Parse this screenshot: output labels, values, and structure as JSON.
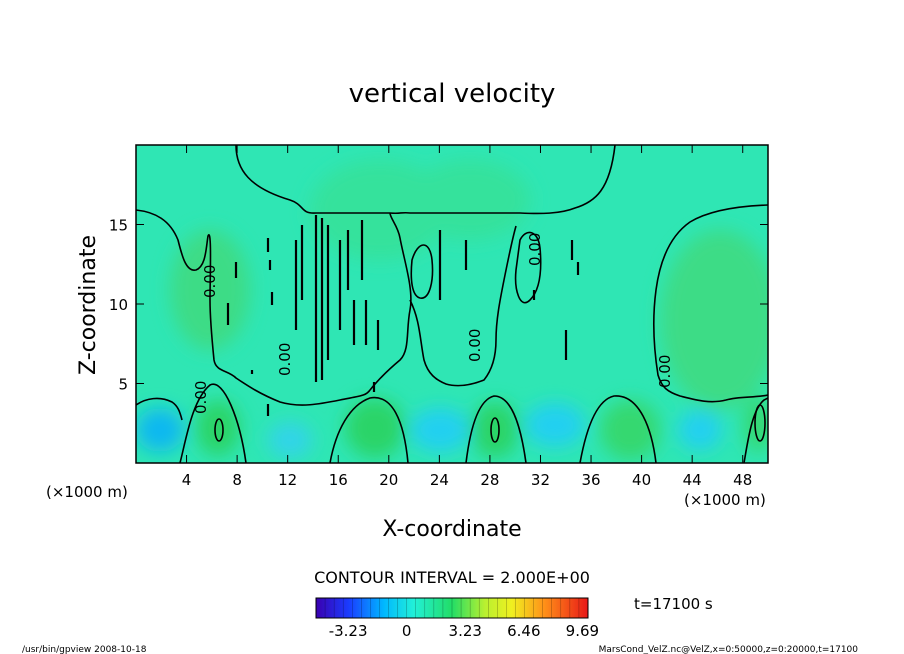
{
  "chart_data": {
    "type": "heatmap",
    "title": "vertical velocity",
    "xlabel": "X-coordinate",
    "ylabel": "Z-coordinate",
    "x_unit": "(×1000 m)",
    "y_unit": "(×1000 m)",
    "xlim": [
      0,
      50
    ],
    "ylim": [
      0,
      20
    ],
    "x_ticks": [
      "4",
      "8",
      "12",
      "16",
      "20",
      "24",
      "28",
      "32",
      "36",
      "40",
      "44",
      "48"
    ],
    "y_ticks": [
      "5",
      "10",
      "15"
    ],
    "contour_interval": "CONTOUR INTERVAL = 2.000E+00",
    "contour_labels": [
      "0.00",
      "0.00",
      "0.00",
      "0.00",
      "0.00",
      "0.00",
      "0.00"
    ],
    "colorbar": {
      "ticks": [
        "-3.23",
        "0",
        "3.23",
        "6.46",
        "9.69"
      ],
      "range": [
        -5,
        10
      ]
    },
    "time_label": "t=17100  s",
    "grid": false
  },
  "footer": {
    "left": "/usr/bin/gpview   2008-10-18",
    "right": "MarsCond_VelZ.nc@VelZ,x=0:50000,z=0:20000,t=17100"
  }
}
